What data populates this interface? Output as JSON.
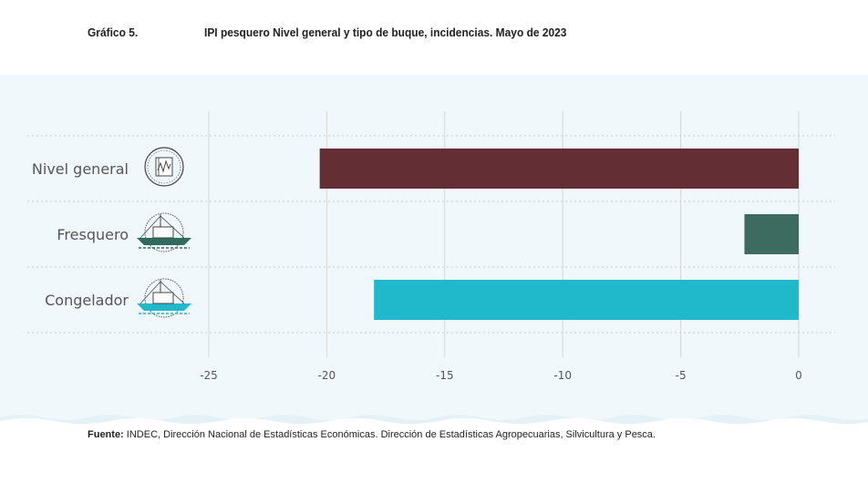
{
  "figure": {
    "number": "Gráfico 5.",
    "title": "IPI pesquero Nivel general y tipo de buque, incidencias. Mayo de 2023"
  },
  "source": {
    "label": "Fuente:",
    "text": " INDEC, Dirección Nacional de Estadísticas Económicas. Dirección de Estadísticas Agropecuarias, Silvicultura y Pesca."
  },
  "chart_data": {
    "type": "bar",
    "orientation": "horizontal",
    "title": "IPI pesquero Nivel general y tipo de buque, incidencias. Mayo de 2023",
    "xlabel": "",
    "ylabel": "",
    "xlim": [
      -25,
      0
    ],
    "ticks": [
      -25,
      -20,
      -15,
      -10,
      -5,
      0
    ],
    "tick_labels": [
      "-25",
      "-20",
      "-15",
      "-10",
      "-5",
      "0"
    ],
    "grid": true,
    "categories": [
      "Nivel general",
      "Fresquero",
      "Congelador"
    ],
    "icons": [
      "index-chart-icon",
      "fresh-fishing-boat-icon",
      "freezer-fishing-boat-icon"
    ],
    "values": [
      -20.3,
      -2.3,
      -18.0
    ],
    "colors": [
      "#632f35",
      "#3d6b5f",
      "#1fb9cb"
    ]
  },
  "colors": {
    "panel_bg": "#f1f8fb",
    "grid": "#d6d6d6",
    "text": "#555555"
  }
}
